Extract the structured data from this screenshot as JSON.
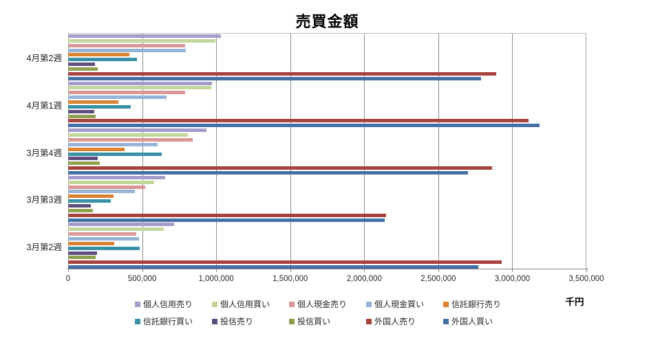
{
  "chart_data": {
    "type": "bar",
    "orientation": "horizontal",
    "title": "売買金額",
    "xlabel": "千円",
    "xlim": [
      0,
      3500000
    ],
    "x_ticks": [
      0,
      500000,
      1000000,
      1500000,
      2000000,
      2500000,
      3000000,
      3500000
    ],
    "x_tick_labels": [
      "0",
      "500,000",
      "1,000,000",
      "1,500,000",
      "2,000,000",
      "2,500,000",
      "3,000,000",
      "3,500,000"
    ],
    "categories": [
      "4月第2週",
      "4月第1週",
      "3月第4週",
      "3月第3週",
      "3月第2週"
    ],
    "grid": true,
    "legend_position": "bottom",
    "legend_rows": 2,
    "series": [
      {
        "name": "個人信用売り",
        "color": "#A49CC8",
        "values": [
          1030000,
          970000,
          935000,
          655000,
          715000
        ]
      },
      {
        "name": "個人信用買い",
        "color": "#C3D69B",
        "values": [
          995000,
          965000,
          810000,
          580000,
          645000
        ]
      },
      {
        "name": "個人現金売り",
        "color": "#D99694",
        "values": [
          790000,
          790000,
          840000,
          520000,
          460000
        ]
      },
      {
        "name": "個人現金買い",
        "color": "#95B3D7",
        "values": [
          795000,
          665000,
          605000,
          450000,
          480000
        ]
      },
      {
        "name": "信託銀行売り",
        "color": "#D9822F",
        "values": [
          415000,
          340000,
          380000,
          305000,
          310000
        ]
      },
      {
        "name": "信託銀行買い",
        "color": "#3891A6",
        "values": [
          465000,
          425000,
          630000,
          290000,
          485000
        ]
      },
      {
        "name": "投信売り",
        "color": "#5F4F80",
        "values": [
          180000,
          175000,
          200000,
          155000,
          195000
        ]
      },
      {
        "name": "投信買い",
        "color": "#8FA04F",
        "values": [
          200000,
          185000,
          215000,
          165000,
          185000
        ]
      },
      {
        "name": "外国人売り",
        "color": "#A8423C",
        "values": [
          2890000,
          3110000,
          2865000,
          2145000,
          2930000
        ]
      },
      {
        "name": "外国人買い",
        "color": "#4470A6",
        "values": [
          2790000,
          3185000,
          2700000,
          2140000,
          2770000
        ]
      }
    ]
  }
}
